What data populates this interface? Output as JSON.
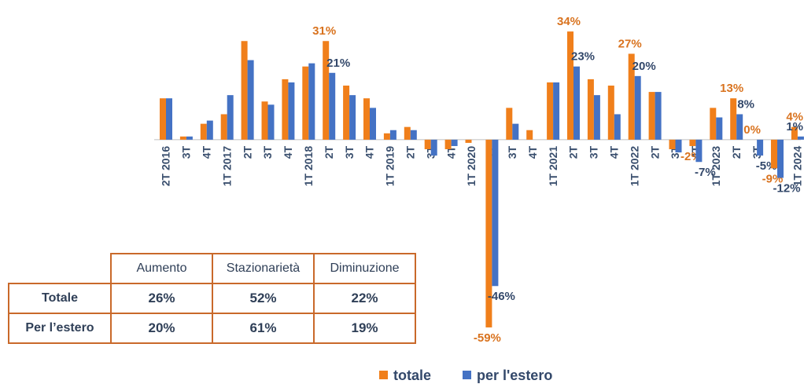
{
  "chart_data": {
    "type": "bar",
    "categories": [
      "2T 2016",
      "3T",
      "4T",
      "1T 2017",
      "2T",
      "3T",
      "4T",
      "1T 2018",
      "2T",
      "3T",
      "4T",
      "1T 2019",
      "2T",
      "3T",
      "4T",
      "1T 2020",
      "2T",
      "3T",
      "4T",
      "1T 2021",
      "2T",
      "3T",
      "4T",
      "1T 2022",
      "2T",
      "3T",
      "4T",
      "1T 2023",
      "2T",
      "3T",
      "4T",
      "1T 2024"
    ],
    "series": [
      {
        "name": "totale",
        "color": "#f07f1b",
        "values": [
          13,
          1,
          5,
          8,
          31,
          12,
          19,
          23,
          31,
          17,
          13,
          2,
          4,
          -3,
          -3,
          -1,
          -59,
          10,
          3,
          18,
          34,
          19,
          17,
          27,
          15,
          -3,
          -2,
          10,
          13,
          0,
          -9,
          4
        ],
        "value_labels": [
          null,
          null,
          null,
          null,
          null,
          null,
          null,
          null,
          "31%",
          null,
          null,
          null,
          null,
          null,
          null,
          null,
          "-59%",
          null,
          null,
          null,
          "34%",
          null,
          null,
          "27%",
          null,
          null,
          "-2%",
          null,
          "13%",
          "0%",
          "-9%",
          "4%"
        ]
      },
      {
        "name": "per l'estero",
        "color": "#4472c4",
        "values": [
          13,
          1,
          6,
          14,
          25,
          11,
          18,
          24,
          21,
          14,
          10,
          3,
          3,
          -5,
          -2,
          0,
          -46,
          5,
          0,
          18,
          23,
          14,
          8,
          20,
          15,
          -4,
          -7,
          7,
          8,
          -5,
          -12,
          1
        ],
        "value_labels": [
          null,
          null,
          null,
          null,
          null,
          null,
          null,
          null,
          "21%",
          null,
          null,
          null,
          null,
          null,
          null,
          null,
          "-46%",
          null,
          null,
          null,
          "23%",
          null,
          null,
          "20%",
          null,
          null,
          "-7%",
          null,
          "8%",
          "-5%",
          "-12%",
          "1%"
        ]
      }
    ],
    "ylim": [
      -60,
      36
    ],
    "legend": "bottom"
  },
  "table": {
    "columns": [
      "Aumento",
      "Stazionarietà",
      "Diminuzione"
    ],
    "rows": [
      {
        "label": "Totale",
        "cells": [
          "26%",
          "52%",
          "22%"
        ]
      },
      {
        "label": "Per l’estero",
        "cells": [
          "20%",
          "61%",
          "19%"
        ]
      }
    ]
  }
}
